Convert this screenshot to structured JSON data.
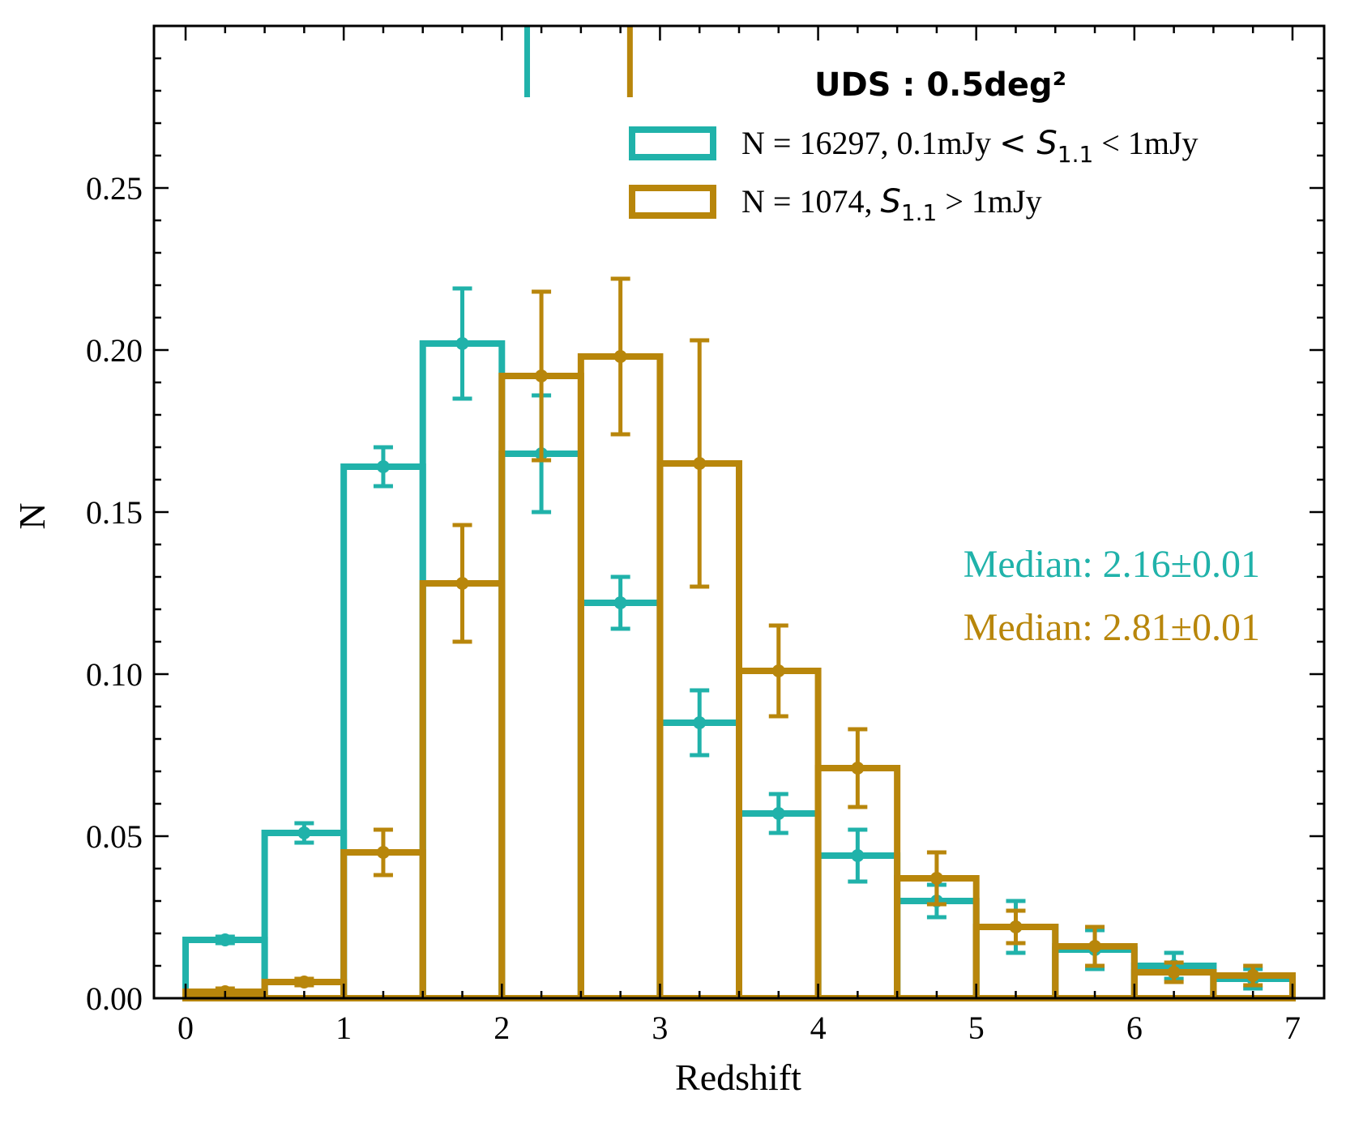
{
  "chart_data": {
    "type": "histogram",
    "title": "",
    "xlabel": "Redshift",
    "ylabel": "N",
    "xlim": [
      -0.2,
      7.2
    ],
    "ylim": [
      0.0,
      0.3
    ],
    "xticks": [
      0,
      1,
      2,
      3,
      4,
      5,
      6,
      7
    ],
    "xtick_labels": [
      "0",
      "1",
      "2",
      "3",
      "4",
      "5",
      "6",
      "7"
    ],
    "yticks": [
      0.0,
      0.05,
      0.1,
      0.15,
      0.2,
      0.25
    ],
    "ytick_labels": [
      "0.00",
      "0.05",
      "0.10",
      "0.15",
      "0.20",
      "0.25"
    ],
    "bin_edges": [
      0,
      0.5,
      1,
      1.5,
      2,
      2.5,
      3,
      3.5,
      4,
      4.5,
      5,
      5.5,
      6,
      6.5,
      7
    ],
    "legend_title": "UDS : 0.5deg²",
    "legend_position": "top-right",
    "series": [
      {
        "name": "N = 16297, 0.1mJy < S1.1 < 1mJy",
        "label_prefix": "N = 16297, 0.1mJy ",
        "label_var": "S",
        "label_sub": "1.1",
        "label_suffix": " < 1mJy",
        "label_op1": "<",
        "color": "#20b2aa",
        "values": [
          0.018,
          0.051,
          0.164,
          0.202,
          0.168,
          0.122,
          0.085,
          0.057,
          0.044,
          0.03,
          0.022,
          0.015,
          0.01,
          0.006
        ],
        "errors": [
          0.001,
          0.003,
          0.006,
          0.017,
          0.018,
          0.008,
          0.01,
          0.006,
          0.008,
          0.005,
          0.008,
          0.006,
          0.004,
          0.003
        ],
        "median": 2.16,
        "median_label": "Median: 2.16±0.01"
      },
      {
        "name": "N = 1074, S1.1 > 1mJy",
        "label_prefix": "N = 1074, ",
        "label_var": "S",
        "label_sub": "1.1",
        "label_suffix": " > 1mJy",
        "label_op1": "",
        "color": "#b8860b",
        "values": [
          0.002,
          0.005,
          0.045,
          0.128,
          0.192,
          0.198,
          0.165,
          0.101,
          0.071,
          0.037,
          0.022,
          0.016,
          0.008,
          0.007
        ],
        "errors": [
          0.001,
          0.001,
          0.007,
          0.018,
          0.026,
          0.024,
          0.038,
          0.014,
          0.012,
          0.008,
          0.005,
          0.006,
          0.003,
          0.003
        ],
        "median": 2.81,
        "median_label": "Median: 2.81±0.01"
      }
    ]
  }
}
